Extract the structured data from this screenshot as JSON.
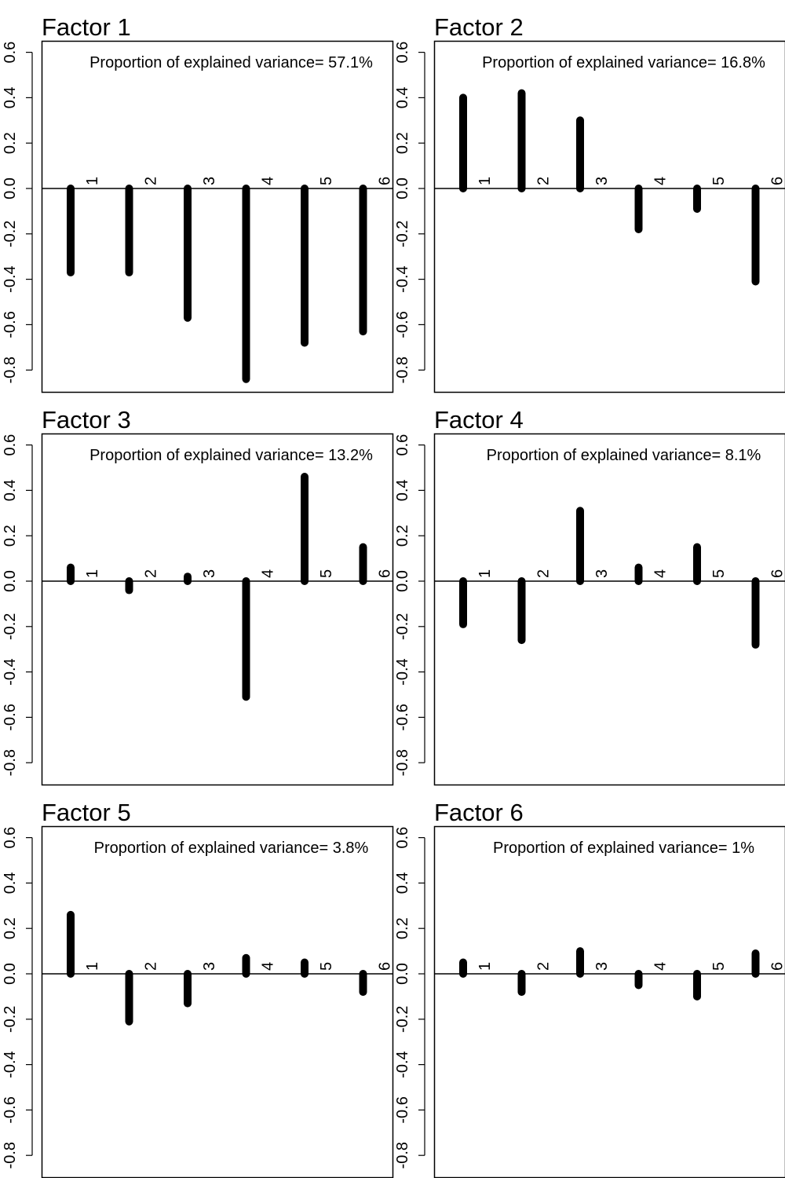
{
  "chart_data": [
    {
      "type": "bar",
      "title": "Factor 1",
      "annotation": "Proportion of explained variance= 57.1%",
      "categories": [
        "1",
        "2",
        "3",
        "4",
        "5",
        "6"
      ],
      "values": [
        -0.37,
        -0.37,
        -0.57,
        -0.84,
        -0.68,
        -0.63
      ],
      "ylim": [
        -0.9,
        0.65
      ],
      "yticks": [
        "-0.8",
        "-0.6",
        "-0.4",
        "-0.2",
        "0.0",
        "0.2",
        "0.4",
        "0.6"
      ],
      "grid": false
    },
    {
      "type": "bar",
      "title": "Factor 2",
      "annotation": "Proportion of explained variance= 16.8%",
      "categories": [
        "1",
        "2",
        "3",
        "4",
        "5",
        "6"
      ],
      "values": [
        0.4,
        0.42,
        0.3,
        -0.18,
        -0.09,
        -0.41
      ],
      "ylim": [
        -0.9,
        0.65
      ],
      "yticks": [
        "-0.8",
        "-0.6",
        "-0.4",
        "-0.2",
        "0.0",
        "0.2",
        "0.4",
        "0.6"
      ],
      "grid": false
    },
    {
      "type": "bar",
      "title": "Factor 3",
      "annotation": "Proportion of explained variance= 13.2%",
      "categories": [
        "1",
        "2",
        "3",
        "4",
        "5",
        "6"
      ],
      "values": [
        0.06,
        -0.04,
        0.02,
        -0.51,
        0.46,
        0.15
      ],
      "ylim": [
        -0.9,
        0.65
      ],
      "yticks": [
        "-0.8",
        "-0.6",
        "-0.4",
        "-0.2",
        "0.0",
        "0.2",
        "0.4",
        "0.6"
      ],
      "grid": false
    },
    {
      "type": "bar",
      "title": "Factor 4",
      "annotation": "Proportion of explained variance= 8.1%",
      "categories": [
        "1",
        "2",
        "3",
        "4",
        "5",
        "6"
      ],
      "values": [
        -0.19,
        -0.26,
        0.31,
        0.06,
        0.15,
        -0.28
      ],
      "ylim": [
        -0.9,
        0.65
      ],
      "yticks": [
        "-0.8",
        "-0.6",
        "-0.4",
        "-0.2",
        "0.0",
        "0.2",
        "0.4",
        "0.6"
      ],
      "grid": false
    },
    {
      "type": "bar",
      "title": "Factor 5",
      "annotation": "Proportion of explained variance= 3.8%",
      "categories": [
        "1",
        "2",
        "3",
        "4",
        "5",
        "6"
      ],
      "values": [
        0.26,
        -0.21,
        -0.13,
        0.07,
        0.05,
        -0.08
      ],
      "ylim": [
        -0.9,
        0.65
      ],
      "yticks": [
        "-0.8",
        "-0.6",
        "-0.4",
        "-0.2",
        "0.0",
        "0.2",
        "0.4",
        "0.6"
      ],
      "grid": false
    },
    {
      "type": "bar",
      "title": "Factor 6",
      "annotation": "Proportion of explained variance= 1%",
      "categories": [
        "1",
        "2",
        "3",
        "4",
        "5",
        "6"
      ],
      "values": [
        0.05,
        -0.08,
        0.1,
        -0.05,
        -0.1,
        0.09
      ],
      "ylim": [
        -0.9,
        0.65
      ],
      "yticks": [
        "-0.8",
        "-0.6",
        "-0.4",
        "-0.2",
        "0.0",
        "0.2",
        "0.4",
        "0.6"
      ],
      "grid": false
    }
  ],
  "colors": {
    "ink": "#000000",
    "background": "#ffffff"
  }
}
